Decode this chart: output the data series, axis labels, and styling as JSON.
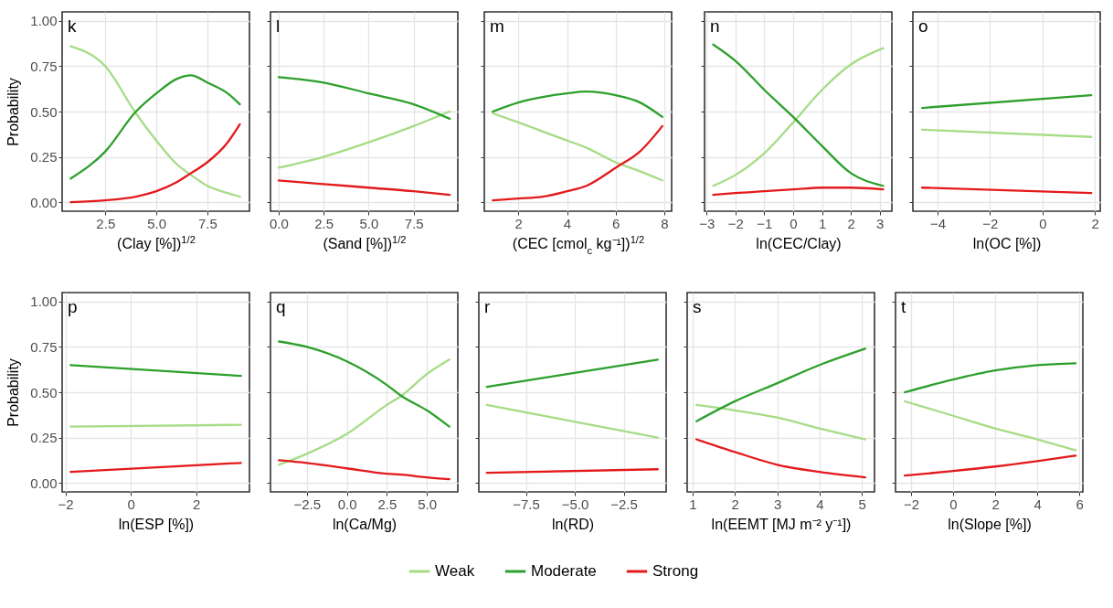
{
  "chart_data": [
    {
      "type": "line",
      "title": "k",
      "xlabel": "(Clay [%])$^{1/2}$",
      "ylabel": "Probability",
      "x": [
        0.8,
        2.5,
        4,
        5,
        6,
        6.7,
        7.5,
        8.5,
        9.1
      ],
      "series": [
        {
          "name": "Weak",
          "color": "#a6dc86",
          "values": [
            0.86,
            0.75,
            0.49,
            0.34,
            0.21,
            0.15,
            0.09,
            0.05,
            0.03
          ]
        },
        {
          "name": "Moderate",
          "color": "#2ca02c",
          "values": [
            0.13,
            0.28,
            0.5,
            0.6,
            0.68,
            0.7,
            0.66,
            0.6,
            0.54
          ]
        },
        {
          "name": "Strong",
          "color": "#e31a1c",
          "values": [
            0.0,
            0.01,
            0.03,
            0.06,
            0.11,
            0.16,
            0.22,
            0.33,
            0.43
          ]
        }
      ],
      "xlim": [
        0.38,
        9.57
      ],
      "xticks": [
        2.5,
        {
          "value": 5,
          "label": "5.0"
        },
        7.5
      ],
      "ylim": [
        -0.05,
        1.05
      ],
      "yticks": [
        {
          "value": 0,
          "label": "0.00"
        },
        0.25,
        {
          "value": 0.5,
          "label": "0.50"
        },
        0.75,
        {
          "value": 1,
          "label": "1.00"
        }
      ],
      "grid": true,
      "legend": "bottom"
    },
    {
      "type": "line",
      "title": "l",
      "xlabel": "(Sand [%])$^{1/2}$",
      "x": [
        0,
        2.5,
        5,
        7.5,
        9.5
      ],
      "series": [
        {
          "name": "Weak",
          "color": "#a6dc86",
          "values": [
            0.19,
            0.25,
            0.33,
            0.42,
            0.5
          ]
        },
        {
          "name": "Moderate",
          "color": "#2ca02c",
          "values": [
            0.69,
            0.66,
            0.6,
            0.54,
            0.46
          ]
        },
        {
          "name": "Strong",
          "color": "#e31a1c",
          "values": [
            0.12,
            0.1,
            0.08,
            0.06,
            0.04
          ]
        }
      ],
      "xlim": [
        -0.45,
        9.95
      ],
      "xticks": [
        {
          "value": 0,
          "label": "0.0"
        },
        2.5,
        {
          "value": 5,
          "label": "5.0"
        },
        7.5
      ],
      "ylim": [
        -0.05,
        1.05
      ],
      "yticks": [
        0,
        0.25,
        0.5,
        0.75,
        1
      ],
      "grid": true,
      "legend": "bottom",
      "tick_labels": "x"
    },
    {
      "type": "line",
      "title": "m",
      "xlabel": "(CEC [cmol$_{c}$ kg⁻¹])$^{1/2}$",
      "x": [
        0.95,
        2,
        3,
        4,
        4.8,
        6,
        7,
        7.92
      ],
      "series": [
        {
          "name": "Weak",
          "color": "#a6dc86",
          "values": [
            0.49,
            0.44,
            0.39,
            0.34,
            0.3,
            0.22,
            0.17,
            0.12
          ]
        },
        {
          "name": "Moderate",
          "color": "#2ca02c",
          "values": [
            0.5,
            0.55,
            0.58,
            0.6,
            0.61,
            0.59,
            0.55,
            0.47
          ]
        },
        {
          "name": "Strong",
          "color": "#e31a1c",
          "values": [
            0.01,
            0.02,
            0.03,
            0.06,
            0.09,
            0.19,
            0.28,
            0.42
          ]
        }
      ],
      "xlim": [
        0.6,
        8.3
      ],
      "xticks": [
        2,
        4,
        6,
        8
      ],
      "ylim": [
        -0.05,
        1.05
      ],
      "yticks": [
        0,
        0.25,
        0.5,
        0.75,
        1
      ],
      "grid": true,
      "legend": "bottom",
      "tick_labels": "x"
    },
    {
      "type": "line",
      "title": "n",
      "xlabel": "ln(CEC/Clay)",
      "x": [
        -2.77,
        -2,
        -1,
        0,
        1,
        2,
        3.12
      ],
      "series": [
        {
          "name": "Weak",
          "color": "#a6dc86",
          "values": [
            0.09,
            0.15,
            0.27,
            0.44,
            0.62,
            0.76,
            0.85
          ]
        },
        {
          "name": "Moderate",
          "color": "#2ca02c",
          "values": [
            0.87,
            0.78,
            0.62,
            0.47,
            0.31,
            0.16,
            0.09
          ]
        },
        {
          "name": "Strong",
          "color": "#e31a1c",
          "values": [
            0.04,
            0.05,
            0.06,
            0.07,
            0.08,
            0.08,
            0.07
          ]
        }
      ],
      "xlim": [
        -3.07,
        3.42
      ],
      "xticks": [
        {
          "value": -3,
          "label": "−3"
        },
        {
          "value": -2,
          "label": "−2"
        },
        {
          "value": -1,
          "label": "−1"
        },
        0,
        1,
        2,
        3
      ],
      "ylim": [
        -0.05,
        1.05
      ],
      "yticks": [
        0,
        0.25,
        0.5,
        0.75,
        1
      ],
      "grid": true,
      "legend": "bottom",
      "tick_labels": "x"
    },
    {
      "type": "line",
      "title": "o",
      "xlabel": "ln(OC [%])",
      "x": [
        -4.59,
        1.86
      ],
      "series": [
        {
          "name": "Weak",
          "color": "#a6dc86",
          "values": [
            0.4,
            0.36
          ]
        },
        {
          "name": "Moderate",
          "color": "#2ca02c",
          "values": [
            0.52,
            0.59
          ]
        },
        {
          "name": "Strong",
          "color": "#e31a1c",
          "values": [
            0.08,
            0.05
          ]
        }
      ],
      "xlim": [
        -4.94,
        2.2
      ],
      "xticks": [
        {
          "value": -4,
          "label": "−4"
        },
        {
          "value": -2,
          "label": "−2"
        },
        0,
        2
      ],
      "ylim": [
        -0.05,
        1.05
      ],
      "yticks": [
        0,
        0.25,
        0.5,
        0.75,
        1
      ],
      "grid": true,
      "legend": "bottom",
      "tick_labels": "x"
    },
    {
      "type": "line",
      "title": "p",
      "xlabel": "ln(ESP [%])",
      "ylabel": "Probability",
      "x": [
        -1.84,
        3.37
      ],
      "series": [
        {
          "name": "Weak",
          "color": "#a6dc86",
          "values": [
            0.31,
            0.32
          ]
        },
        {
          "name": "Moderate",
          "color": "#2ca02c",
          "values": [
            0.65,
            0.59
          ]
        },
        {
          "name": "Strong",
          "color": "#e31a1c",
          "values": [
            0.06,
            0.11
          ]
        }
      ],
      "xlim": [
        -2.1,
        3.63
      ],
      "xticks": [
        {
          "value": -2,
          "label": "−2"
        },
        0,
        2
      ],
      "ylim": [
        -0.05,
        1.05
      ],
      "yticks": [
        {
          "value": 0,
          "label": "0.00"
        },
        0.25,
        {
          "value": 0.5,
          "label": "0.50"
        },
        0.75,
        {
          "value": 1,
          "label": "1.00"
        }
      ],
      "grid": true,
      "legend": "bottom"
    },
    {
      "type": "line",
      "title": "q",
      "xlabel": "ln(Ca/Mg)",
      "x": [
        -4.24,
        -2.5,
        0,
        2.5,
        3.4,
        5,
        6.4
      ],
      "series": [
        {
          "name": "Weak",
          "color": "#a6dc86",
          "values": [
            0.1,
            0.16,
            0.27,
            0.43,
            0.48,
            0.6,
            0.68
          ]
        },
        {
          "name": "Moderate",
          "color": "#2ca02c",
          "values": [
            0.78,
            0.75,
            0.67,
            0.54,
            0.48,
            0.4,
            0.31
          ]
        },
        {
          "name": "Strong",
          "color": "#e31a1c",
          "values": [
            0.125,
            0.11,
            0.08,
            0.05,
            0.045,
            0.03,
            0.02
          ]
        }
      ],
      "xlim": [
        -4.77,
        6.93
      ],
      "xticks": [
        {
          "value": -2.5,
          "label": "−2.5"
        },
        {
          "value": 0,
          "label": "0.0"
        },
        2.5,
        {
          "value": 5,
          "label": "5.0"
        }
      ],
      "ylim": [
        -0.05,
        1.05
      ],
      "yticks": [
        0,
        0.25,
        0.5,
        0.75,
        1
      ],
      "grid": true,
      "legend": "bottom",
      "tick_labels": "x"
    },
    {
      "type": "line",
      "title": "r",
      "xlabel": "ln(RD)",
      "x": [
        -9.5,
        -0.76
      ],
      "series": [
        {
          "name": "Weak",
          "color": "#a6dc86",
          "values": [
            0.43,
            0.25
          ]
        },
        {
          "name": "Moderate",
          "color": "#2ca02c",
          "values": [
            0.53,
            0.68
          ]
        },
        {
          "name": "Strong",
          "color": "#e31a1c",
          "values": [
            0.055,
            0.075
          ]
        }
      ],
      "xlim": [
        -9.91,
        -0.33
      ],
      "xticks": [
        {
          "value": -7.5,
          "label": "−7.5"
        },
        {
          "value": -5,
          "label": "−5.0"
        },
        {
          "value": -2.5,
          "label": "−2.5"
        }
      ],
      "ylim": [
        -0.05,
        1.05
      ],
      "yticks": [
        0,
        0.25,
        0.5,
        0.75,
        1
      ],
      "grid": true,
      "legend": "bottom",
      "tick_labels": "x"
    },
    {
      "type": "line",
      "title": "s",
      "xlabel": "ln(EEMT [MJ m⁻² y⁻¹])",
      "x": [
        1.09,
        2,
        3,
        4,
        5.08
      ],
      "series": [
        {
          "name": "Weak",
          "color": "#a6dc86",
          "values": [
            0.43,
            0.4,
            0.36,
            0.3,
            0.24
          ]
        },
        {
          "name": "Moderate",
          "color": "#2ca02c",
          "values": [
            0.34,
            0.45,
            0.55,
            0.65,
            0.74
          ]
        },
        {
          "name": "Strong",
          "color": "#e31a1c",
          "values": [
            0.24,
            0.17,
            0.1,
            0.06,
            0.03
          ]
        }
      ],
      "xlim": [
        0.87,
        5.3
      ],
      "xticks": [
        1,
        2,
        3,
        4,
        5
      ],
      "ylim": [
        -0.05,
        1.05
      ],
      "yticks": [
        0,
        0.25,
        0.5,
        0.75,
        1
      ],
      "grid": true,
      "legend": "bottom",
      "tick_labels": "x"
    },
    {
      "type": "line",
      "title": "t",
      "xlabel": "ln(Slope [%])",
      "x": [
        -2.3,
        0,
        2,
        4,
        5.83
      ],
      "series": [
        {
          "name": "Weak",
          "color": "#a6dc86",
          "values": [
            0.45,
            0.37,
            0.3,
            0.24,
            0.18
          ]
        },
        {
          "name": "Moderate",
          "color": "#2ca02c",
          "values": [
            0.5,
            0.57,
            0.62,
            0.65,
            0.66
          ]
        },
        {
          "name": "Strong",
          "color": "#e31a1c",
          "values": [
            0.04,
            0.065,
            0.09,
            0.12,
            0.15
          ]
        }
      ],
      "xlim": [
        -2.74,
        6.17
      ],
      "xticks": [
        {
          "value": -2,
          "label": "−2"
        },
        0,
        2,
        4,
        6
      ],
      "ylim": [
        -0.05,
        1.05
      ],
      "yticks": [
        0,
        0.25,
        0.5,
        0.75,
        1
      ],
      "grid": true,
      "legend": "bottom",
      "tick_labels": "x"
    }
  ]
}
